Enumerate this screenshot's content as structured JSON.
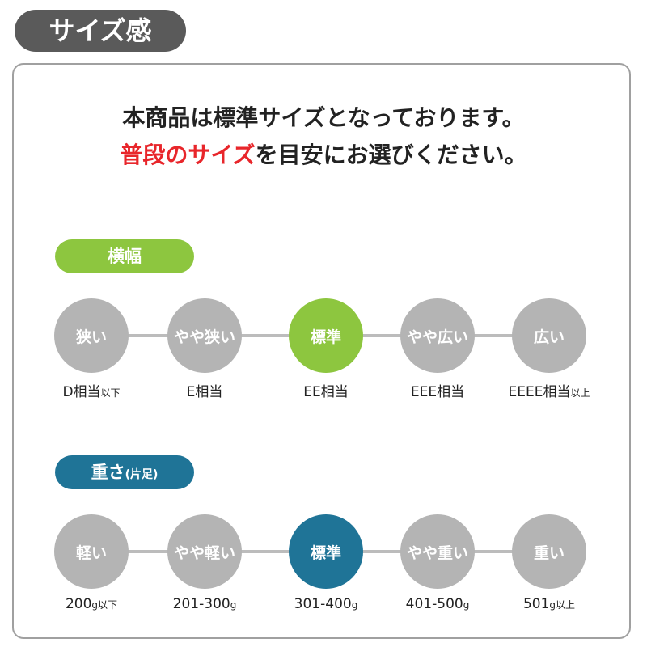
{
  "header": {
    "title": "サイズ感"
  },
  "message": {
    "line1": "本商品は標準サイズとなっております。",
    "line2_highlight": "普段のサイズ",
    "line2_rest": "を目安にお選びください。"
  },
  "sections": [
    {
      "title": "横幅",
      "color": "#8dc63f",
      "steps": [
        {
          "label": "狭い",
          "caption": "D相当",
          "caption_suffix": "以下"
        },
        {
          "label": "やや狭い",
          "caption": "E相当"
        },
        {
          "label": "標準",
          "caption": "EE相当",
          "active": true
        },
        {
          "label": "やや広い",
          "caption": "EEE相当"
        },
        {
          "label": "広い",
          "caption": "EEEE相当",
          "caption_suffix": "以上"
        }
      ]
    },
    {
      "title": "重さ",
      "title_note": "(片足)",
      "color": "#1f7497",
      "steps": [
        {
          "label": "軽い",
          "caption": "200",
          "caption_suffix": "g以下"
        },
        {
          "label": "やや軽い",
          "caption": "201-300",
          "caption_suffix": "g"
        },
        {
          "label": "標準",
          "caption": "301-400",
          "caption_suffix": "g",
          "active": true
        },
        {
          "label": "やや重い",
          "caption": "401-500",
          "caption_suffix": "g"
        },
        {
          "label": "重い",
          "caption": "501",
          "caption_suffix": "g以上"
        }
      ]
    }
  ]
}
